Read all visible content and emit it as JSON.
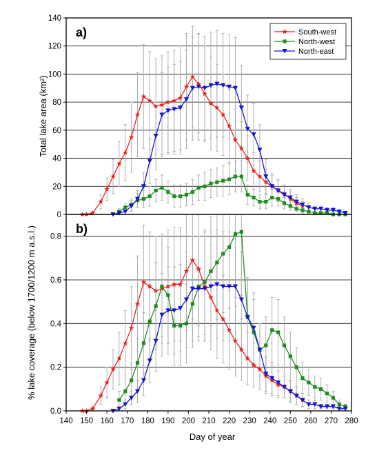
{
  "figure": {
    "xlabel": "Day of year",
    "x_ticks": [
      "140",
      "150",
      "160",
      "170",
      "180",
      "190",
      "200",
      "210",
      "220",
      "230",
      "240",
      "250",
      "260",
      "270",
      "280"
    ]
  },
  "legend": [
    {
      "name": "South-west",
      "color": "#e8201b",
      "marker": "star"
    },
    {
      "name": "North-west",
      "color": "#1e8c1e",
      "marker": "square"
    },
    {
      "name": "North-east",
      "color": "#1414d2",
      "marker": "triangle-down"
    }
  ],
  "chart_data": [
    {
      "type": "line",
      "panel_label": "a)",
      "ylabel": "Total lake area (km²)",
      "xlim": [
        140,
        280
      ],
      "ylim": [
        0,
        140
      ],
      "y_ticks": [
        "0",
        "20",
        "40",
        "60",
        "80",
        "100",
        "120",
        "140"
      ],
      "grid": "horizontal",
      "legend_position": "top-right",
      "series": [
        {
          "name": "South-west",
          "color": "#e8201b",
          "x": [
            148,
            150,
            153,
            157,
            160,
            163,
            166,
            169,
            172,
            175,
            178,
            181,
            184,
            187,
            190,
            193,
            196,
            199,
            202,
            205,
            208,
            211,
            214,
            217,
            220,
            223,
            226,
            229,
            232,
            235,
            238,
            241,
            244,
            247,
            250,
            253,
            256
          ],
          "y": [
            0,
            0,
            1,
            9,
            18,
            27,
            36,
            44,
            55,
            71,
            84,
            81,
            77,
            78,
            80,
            81,
            83,
            91,
            98,
            93,
            86,
            79,
            76,
            71,
            63,
            53,
            47,
            40,
            31,
            27,
            23,
            20,
            17,
            15,
            11,
            8,
            6
          ],
          "err": [
            0,
            0,
            1,
            5,
            8,
            12,
            16,
            20,
            25,
            30,
            37,
            35,
            34,
            35,
            36,
            36,
            37,
            38,
            36,
            35,
            34,
            33,
            31,
            29,
            26,
            22,
            19,
            16,
            13,
            11,
            9,
            8,
            7,
            6,
            5,
            4,
            3
          ]
        },
        {
          "name": "North-west",
          "color": "#1e8c1e",
          "x": [
            166,
            169,
            172,
            175,
            178,
            181,
            184,
            187,
            190,
            193,
            196,
            199,
            202,
            205,
            208,
            211,
            214,
            217,
            220,
            223,
            226,
            229,
            232,
            235,
            238,
            241,
            244,
            247,
            250,
            253,
            256,
            259,
            262,
            265,
            268,
            271,
            274,
            277
          ],
          "y": [
            2,
            5,
            7,
            10,
            11,
            13,
            17,
            19,
            16,
            13,
            13,
            14,
            16,
            19,
            20,
            22,
            23,
            24,
            25,
            27,
            27,
            14,
            12,
            9,
            9,
            12,
            11,
            8,
            6,
            4,
            3,
            2,
            1,
            1,
            1,
            0,
            0,
            0
          ],
          "err": [
            2,
            3,
            4,
            5,
            6,
            7,
            8,
            9,
            8,
            8,
            8,
            8,
            9,
            9,
            10,
            10,
            10,
            11,
            11,
            11,
            11,
            7,
            6,
            5,
            5,
            6,
            5,
            4,
            3,
            2,
            2,
            1,
            1,
            1,
            1,
            0,
            0,
            0
          ]
        },
        {
          "name": "North-east",
          "color": "#1414d2",
          "x": [
            163,
            166,
            169,
            172,
            175,
            178,
            181,
            184,
            187,
            190,
            193,
            196,
            199,
            202,
            205,
            208,
            211,
            214,
            217,
            220,
            223,
            226,
            229,
            232,
            235,
            238,
            241,
            244,
            247,
            250,
            253,
            256,
            259,
            262,
            265,
            268,
            271,
            274,
            277
          ],
          "y": [
            0,
            1,
            2,
            6,
            11,
            20,
            38,
            56,
            71,
            74,
            75,
            76,
            82,
            90,
            91,
            90,
            92,
            93,
            92,
            91,
            90,
            76,
            61,
            57,
            46,
            27,
            20,
            17,
            14,
            12,
            9,
            7,
            5,
            4,
            4,
            3,
            3,
            2,
            1
          ],
          "err": [
            0,
            1,
            2,
            4,
            6,
            10,
            16,
            24,
            30,
            31,
            32,
            33,
            35,
            37,
            38,
            37,
            38,
            38,
            37,
            37,
            36,
            30,
            24,
            22,
            18,
            12,
            9,
            8,
            7,
            6,
            5,
            4,
            3,
            2,
            2,
            2,
            2,
            1,
            1
          ]
        }
      ]
    },
    {
      "type": "line",
      "panel_label": "b)",
      "ylabel": "% lake coverage (below 1700/1200 m a.s.l.)",
      "xlim": [
        140,
        280
      ],
      "ylim": [
        0,
        0.9
      ],
      "y_ticks": [
        "0.0",
        "0.2",
        "0.4",
        "0.6",
        "0.8"
      ],
      "grid": "horizontal",
      "series": [
        {
          "name": "South-west",
          "color": "#e8201b",
          "x": [
            148,
            150,
            153,
            157,
            160,
            163,
            166,
            169,
            172,
            175,
            178,
            181,
            184,
            187,
            190,
            193,
            196,
            199,
            202,
            205,
            208,
            211,
            214,
            217,
            220,
            223,
            226,
            229,
            232,
            235,
            238,
            241,
            244,
            247,
            250,
            253,
            256
          ],
          "y": [
            0,
            0,
            0.01,
            0.07,
            0.13,
            0.19,
            0.24,
            0.31,
            0.38,
            0.49,
            0.59,
            0.57,
            0.55,
            0.56,
            0.57,
            0.58,
            0.58,
            0.64,
            0.69,
            0.65,
            0.57,
            0.52,
            0.46,
            0.42,
            0.37,
            0.32,
            0.28,
            0.24,
            0.21,
            0.19,
            0.16,
            0.14,
            0.12,
            0.11,
            0.09,
            0.07,
            0.05
          ],
          "err": [
            0,
            0,
            0.01,
            0.04,
            0.07,
            0.09,
            0.12,
            0.15,
            0.19,
            0.22,
            0.26,
            0.25,
            0.25,
            0.25,
            0.26,
            0.26,
            0.26,
            0.27,
            0.27,
            0.26,
            0.25,
            0.24,
            0.22,
            0.2,
            0.18,
            0.16,
            0.14,
            0.12,
            0.1,
            0.09,
            0.08,
            0.07,
            0.06,
            0.05,
            0.05,
            0.04,
            0.03
          ]
        },
        {
          "name": "North-west",
          "color": "#1e8c1e",
          "x": [
            166,
            169,
            172,
            175,
            178,
            181,
            184,
            187,
            190,
            193,
            196,
            199,
            202,
            205,
            208,
            211,
            214,
            217,
            220,
            223,
            226,
            229,
            232,
            235,
            238,
            241,
            244,
            247,
            250,
            253,
            256,
            259,
            262,
            265,
            268,
            271,
            274,
            277
          ],
          "y": [
            0.05,
            0.09,
            0.14,
            0.22,
            0.31,
            0.41,
            0.48,
            0.57,
            0.53,
            0.39,
            0.39,
            0.4,
            0.49,
            0.57,
            0.59,
            0.64,
            0.68,
            0.72,
            0.75,
            0.81,
            0.82,
            0.43,
            0.36,
            0.28,
            0.3,
            0.37,
            0.36,
            0.3,
            0.25,
            0.2,
            0.15,
            0.13,
            0.11,
            0.1,
            0.08,
            0.06,
            0.03,
            0.02
          ],
          "err": [
            0.04,
            0.06,
            0.08,
            0.11,
            0.14,
            0.17,
            0.2,
            0.23,
            0.22,
            0.18,
            0.18,
            0.18,
            0.2,
            0.23,
            0.24,
            0.25,
            0.26,
            0.27,
            0.28,
            0.29,
            0.29,
            0.18,
            0.15,
            0.12,
            0.13,
            0.15,
            0.15,
            0.13,
            0.11,
            0.09,
            0.07,
            0.06,
            0.05,
            0.05,
            0.04,
            0.03,
            0.02,
            0.01
          ]
        },
        {
          "name": "North-east",
          "color": "#1414d2",
          "x": [
            163,
            166,
            169,
            172,
            175,
            178,
            181,
            184,
            187,
            190,
            193,
            196,
            199,
            202,
            205,
            208,
            211,
            214,
            217,
            220,
            223,
            226,
            229,
            232,
            235,
            238,
            241,
            244,
            247,
            250,
            253,
            256,
            259,
            262,
            265,
            268,
            271,
            274,
            277
          ],
          "y": [
            0,
            0.01,
            0.03,
            0.06,
            0.09,
            0.14,
            0.23,
            0.32,
            0.44,
            0.46,
            0.46,
            0.47,
            0.51,
            0.56,
            0.56,
            0.56,
            0.57,
            0.58,
            0.57,
            0.57,
            0.57,
            0.51,
            0.43,
            0.38,
            0.28,
            0.17,
            0.15,
            0.13,
            0.11,
            0.09,
            0.07,
            0.05,
            0.03,
            0.03,
            0.02,
            0.02,
            0.02,
            0.01,
            0.01
          ],
          "err": [
            0,
            0.01,
            0.02,
            0.03,
            0.05,
            0.07,
            0.1,
            0.14,
            0.19,
            0.2,
            0.2,
            0.2,
            0.22,
            0.24,
            0.24,
            0.24,
            0.25,
            0.25,
            0.25,
            0.25,
            0.25,
            0.22,
            0.18,
            0.16,
            0.12,
            0.08,
            0.07,
            0.06,
            0.05,
            0.05,
            0.04,
            0.03,
            0.02,
            0.02,
            0.01,
            0.01,
            0.01,
            0.01,
            0.01
          ]
        }
      ]
    }
  ]
}
